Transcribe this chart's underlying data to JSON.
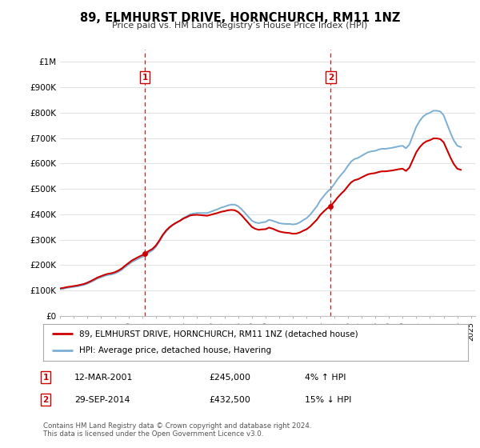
{
  "title": "89, ELMHURST DRIVE, HORNCHURCH, RM11 1NZ",
  "subtitle": "Price paid vs. HM Land Registry’s House Price Index (HPI)",
  "ylim": [
    0,
    1050000
  ],
  "yticks": [
    0,
    100000,
    200000,
    300000,
    400000,
    500000,
    600000,
    700000,
    800000,
    900000,
    1000000
  ],
  "ytick_labels": [
    "£0",
    "£100K",
    "£200K",
    "£300K",
    "£400K",
    "£500K",
    "£600K",
    "£700K",
    "£800K",
    "£900K",
    "£1M"
  ],
  "background_color": "#ffffff",
  "grid_color": "#e0e0e0",
  "hpi_color": "#7bafd4",
  "price_color": "#cc0000",
  "vline_color": "#cc0000",
  "sale1_year": 2001.19,
  "sale1_price": 245000,
  "sale1_label": "1",
  "sale1_date": "12-MAR-2001",
  "sale1_hpi_pct": "4% ↑ HPI",
  "sale2_year": 2014.75,
  "sale2_price": 432500,
  "sale2_label": "2",
  "sale2_date": "29-SEP-2014",
  "sale2_hpi_pct": "15% ↓ HPI",
  "legend_property": "89, ELMHURST DRIVE, HORNCHURCH, RM11 1NZ (detached house)",
  "legend_hpi": "HPI: Average price, detached house, Havering",
  "footer": "Contains HM Land Registry data © Crown copyright and database right 2024.\nThis data is licensed under the Open Government Licence v3.0.",
  "hpi_data_x": [
    1995.0,
    1995.25,
    1995.5,
    1995.75,
    1996.0,
    1996.25,
    1996.5,
    1996.75,
    1997.0,
    1997.25,
    1997.5,
    1997.75,
    1998.0,
    1998.25,
    1998.5,
    1998.75,
    1999.0,
    1999.25,
    1999.5,
    1999.75,
    2000.0,
    2000.25,
    2000.5,
    2000.75,
    2001.0,
    2001.25,
    2001.5,
    2001.75,
    2002.0,
    2002.25,
    2002.5,
    2002.75,
    2003.0,
    2003.25,
    2003.5,
    2003.75,
    2004.0,
    2004.25,
    2004.5,
    2004.75,
    2005.0,
    2005.25,
    2005.5,
    2005.75,
    2006.0,
    2006.25,
    2006.5,
    2006.75,
    2007.0,
    2007.25,
    2007.5,
    2007.75,
    2008.0,
    2008.25,
    2008.5,
    2008.75,
    2009.0,
    2009.25,
    2009.5,
    2009.75,
    2010.0,
    2010.25,
    2010.5,
    2010.75,
    2011.0,
    2011.25,
    2011.5,
    2011.75,
    2012.0,
    2012.25,
    2012.5,
    2012.75,
    2013.0,
    2013.25,
    2013.5,
    2013.75,
    2014.0,
    2014.25,
    2014.5,
    2014.75,
    2015.0,
    2015.25,
    2015.5,
    2015.75,
    2016.0,
    2016.25,
    2016.5,
    2016.75,
    2017.0,
    2017.25,
    2017.5,
    2017.75,
    2018.0,
    2018.25,
    2018.5,
    2018.75,
    2019.0,
    2019.25,
    2019.5,
    2019.75,
    2020.0,
    2020.25,
    2020.5,
    2020.75,
    2021.0,
    2021.25,
    2021.5,
    2021.75,
    2022.0,
    2022.25,
    2022.5,
    2022.75,
    2023.0,
    2023.25,
    2023.5,
    2023.75,
    2024.0,
    2024.25
  ],
  "hpi_data_y": [
    105000,
    107000,
    110000,
    112000,
    114000,
    116000,
    119000,
    122000,
    127000,
    133000,
    140000,
    147000,
    152000,
    157000,
    161000,
    163000,
    167000,
    173000,
    181000,
    192000,
    202000,
    212000,
    219000,
    226000,
    232000,
    240000,
    250000,
    258000,
    272000,
    292000,
    315000,
    333000,
    347000,
    358000,
    367000,
    375000,
    385000,
    392000,
    400000,
    403000,
    405000,
    405000,
    405000,
    405000,
    410000,
    415000,
    420000,
    426000,
    430000,
    435000,
    438000,
    438000,
    432000,
    420000,
    405000,
    390000,
    375000,
    368000,
    365000,
    368000,
    370000,
    378000,
    375000,
    370000,
    365000,
    363000,
    362000,
    362000,
    360000,
    362000,
    368000,
    377000,
    385000,
    398000,
    415000,
    432000,
    455000,
    472000,
    488000,
    500000,
    518000,
    538000,
    555000,
    570000,
    590000,
    608000,
    618000,
    622000,
    630000,
    638000,
    645000,
    648000,
    650000,
    655000,
    658000,
    658000,
    660000,
    662000,
    665000,
    668000,
    670000,
    660000,
    675000,
    710000,
    745000,
    768000,
    785000,
    795000,
    800000,
    808000,
    808000,
    805000,
    790000,
    755000,
    720000,
    690000,
    670000,
    665000
  ]
}
